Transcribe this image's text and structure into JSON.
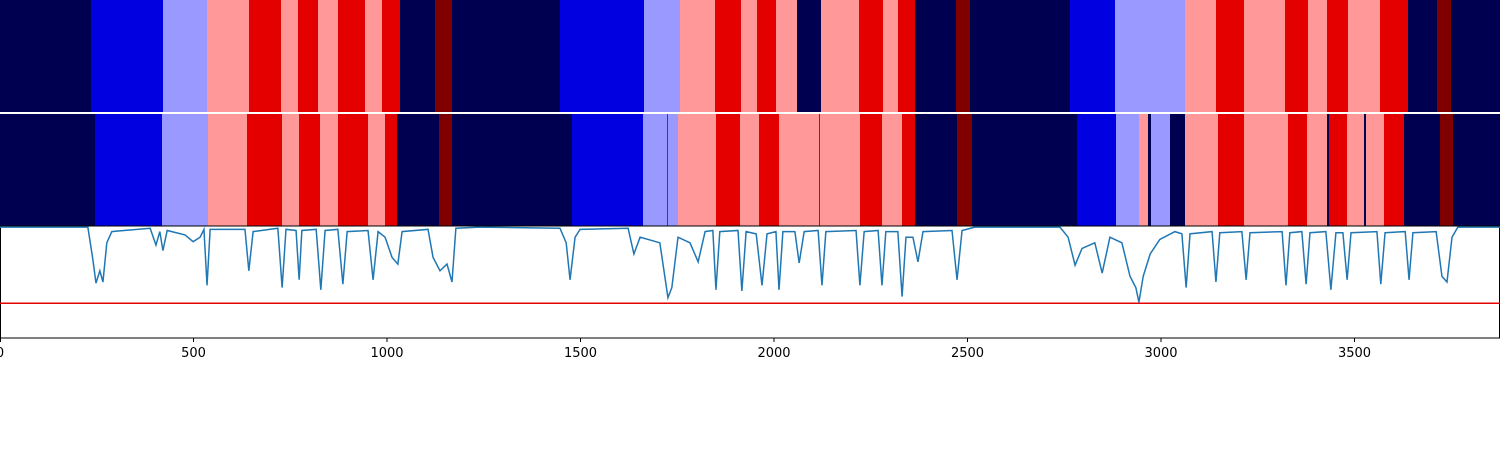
{
  "chart_data": [
    {
      "type": "segments",
      "colors": [
        "#000050",
        "#0000e0",
        "#9999ff",
        "#ff9999",
        "#e50000",
        "#800000"
      ],
      "breaks": [
        0,
        235,
        421,
        535,
        643,
        726,
        770,
        822,
        873,
        943,
        987,
        1034,
        1124,
        1168,
        1447,
        1664,
        1757,
        1848,
        1915,
        1956,
        2005,
        2059,
        2121,
        2220,
        2282,
        2320,
        2364,
        2470,
        2506,
        2765,
        2881,
        3062,
        3142,
        3214,
        3320,
        3380,
        3429,
        3483,
        3566,
        3638,
        3713,
        3749,
        3876
      ],
      "states": [
        0,
        1,
        2,
        3,
        4,
        3,
        4,
        3,
        4,
        3,
        4,
        0,
        5,
        0,
        1,
        2,
        3,
        4,
        3,
        4,
        3,
        0,
        3,
        4,
        3,
        4,
        0,
        5,
        0,
        1,
        2,
        3,
        4,
        3,
        4,
        3,
        4,
        3,
        4,
        0,
        5,
        0
      ]
    },
    {
      "type": "segments",
      "colors": [
        "#000050",
        "#0000e0",
        "#9999ff",
        "#ff9999",
        "#e50000",
        "#800000"
      ],
      "breaks": [
        0,
        245,
        419,
        537,
        638,
        729,
        773,
        827,
        873,
        951,
        995,
        1026,
        1134,
        1168,
        1478,
        1662,
        1723,
        1726,
        1752,
        1850,
        1912,
        1961,
        2013,
        2116,
        2119,
        2222,
        2279,
        2331,
        2364,
        2473,
        2512,
        2783,
        2884,
        2943,
        2966,
        2974,
        3023,
        3062,
        3147,
        3214,
        3328,
        3377,
        3429,
        3434,
        3481,
        3525,
        3530,
        3576,
        3628,
        3721,
        3755,
        3876
      ],
      "states": [
        0,
        1,
        2,
        3,
        4,
        3,
        4,
        3,
        4,
        3,
        4,
        0,
        5,
        0,
        1,
        2,
        4,
        2,
        3,
        4,
        3,
        4,
        3,
        4,
        3,
        4,
        3,
        4,
        0,
        5,
        0,
        1,
        2,
        3,
        0,
        2,
        0,
        3,
        4,
        3,
        4,
        3,
        0,
        4,
        3,
        0,
        3,
        4,
        0,
        5,
        0
      ]
    },
    {
      "type": "line",
      "color": "#1f77b4",
      "threshold": 0.31,
      "threshold_color": "#e50000",
      "xlim": [
        0,
        3876
      ],
      "xticks": [
        0,
        500,
        1000,
        1500,
        2000,
        2500,
        3000,
        3500
      ],
      "ylim": [
        0,
        1
      ],
      "x": [
        0,
        227,
        240,
        248,
        258,
        266,
        276,
        289,
        388,
        403,
        413,
        421,
        432,
        478,
        499,
        517,
        527,
        535,
        543,
        633,
        643,
        654,
        718,
        729,
        739,
        765,
        773,
        780,
        817,
        829,
        840,
        873,
        886,
        897,
        951,
        964,
        977,
        995,
        1013,
        1028,
        1039,
        1106,
        1119,
        1137,
        1155,
        1168,
        1178,
        1240,
        1447,
        1463,
        1473,
        1486,
        1499,
        1623,
        1638,
        1654,
        1705,
        1726,
        1736,
        1752,
        1783,
        1804,
        1822,
        1842,
        1850,
        1860,
        1907,
        1917,
        1928,
        1954,
        1969,
        1982,
        2005,
        2013,
        2023,
        2054,
        2065,
        2078,
        2114,
        2124,
        2134,
        2212,
        2222,
        2233,
        2269,
        2279,
        2289,
        2320,
        2331,
        2341,
        2359,
        2372,
        2385,
        2460,
        2473,
        2486,
        2519,
        2739,
        2760,
        2778,
        2796,
        2829,
        2848,
        2868,
        2899,
        2920,
        2935,
        2943,
        2954,
        2972,
        2997,
        3036,
        3054,
        3065,
        3075,
        3132,
        3142,
        3152,
        3209,
        3220,
        3230,
        3313,
        3323,
        3333,
        3364,
        3375,
        3385,
        3426,
        3439,
        3452,
        3470,
        3481,
        3491,
        3558,
        3568,
        3579,
        3631,
        3641,
        3651,
        3711,
        3726,
        3739,
        3752,
        3767,
        3876
      ],
      "values": [
        0.99,
        0.99,
        0.7,
        0.49,
        0.6,
        0.5,
        0.85,
        0.95,
        0.98,
        0.83,
        0.95,
        0.78,
        0.96,
        0.92,
        0.86,
        0.9,
        0.97,
        0.47,
        0.97,
        0.97,
        0.6,
        0.95,
        0.98,
        0.45,
        0.97,
        0.96,
        0.52,
        0.96,
        0.97,
        0.43,
        0.96,
        0.97,
        0.48,
        0.95,
        0.96,
        0.52,
        0.95,
        0.9,
        0.72,
        0.66,
        0.95,
        0.97,
        0.72,
        0.6,
        0.66,
        0.5,
        0.98,
        0.99,
        0.98,
        0.85,
        0.52,
        0.9,
        0.97,
        0.98,
        0.75,
        0.9,
        0.85,
        0.36,
        0.45,
        0.9,
        0.85,
        0.68,
        0.95,
        0.96,
        0.43,
        0.95,
        0.96,
        0.42,
        0.95,
        0.93,
        0.47,
        0.93,
        0.95,
        0.43,
        0.95,
        0.95,
        0.67,
        0.95,
        0.96,
        0.47,
        0.95,
        0.96,
        0.47,
        0.95,
        0.96,
        0.47,
        0.95,
        0.95,
        0.37,
        0.9,
        0.9,
        0.68,
        0.95,
        0.96,
        0.52,
        0.96,
        0.99,
        0.99,
        0.9,
        0.65,
        0.8,
        0.85,
        0.58,
        0.9,
        0.85,
        0.55,
        0.45,
        0.32,
        0.55,
        0.75,
        0.88,
        0.95,
        0.93,
        0.45,
        0.93,
        0.95,
        0.5,
        0.94,
        0.95,
        0.52,
        0.94,
        0.95,
        0.47,
        0.94,
        0.95,
        0.48,
        0.94,
        0.95,
        0.43,
        0.94,
        0.94,
        0.52,
        0.94,
        0.95,
        0.48,
        0.94,
        0.95,
        0.52,
        0.94,
        0.95,
        0.55,
        0.5,
        0.9,
        0.99,
        0.99
      ]
    }
  ]
}
